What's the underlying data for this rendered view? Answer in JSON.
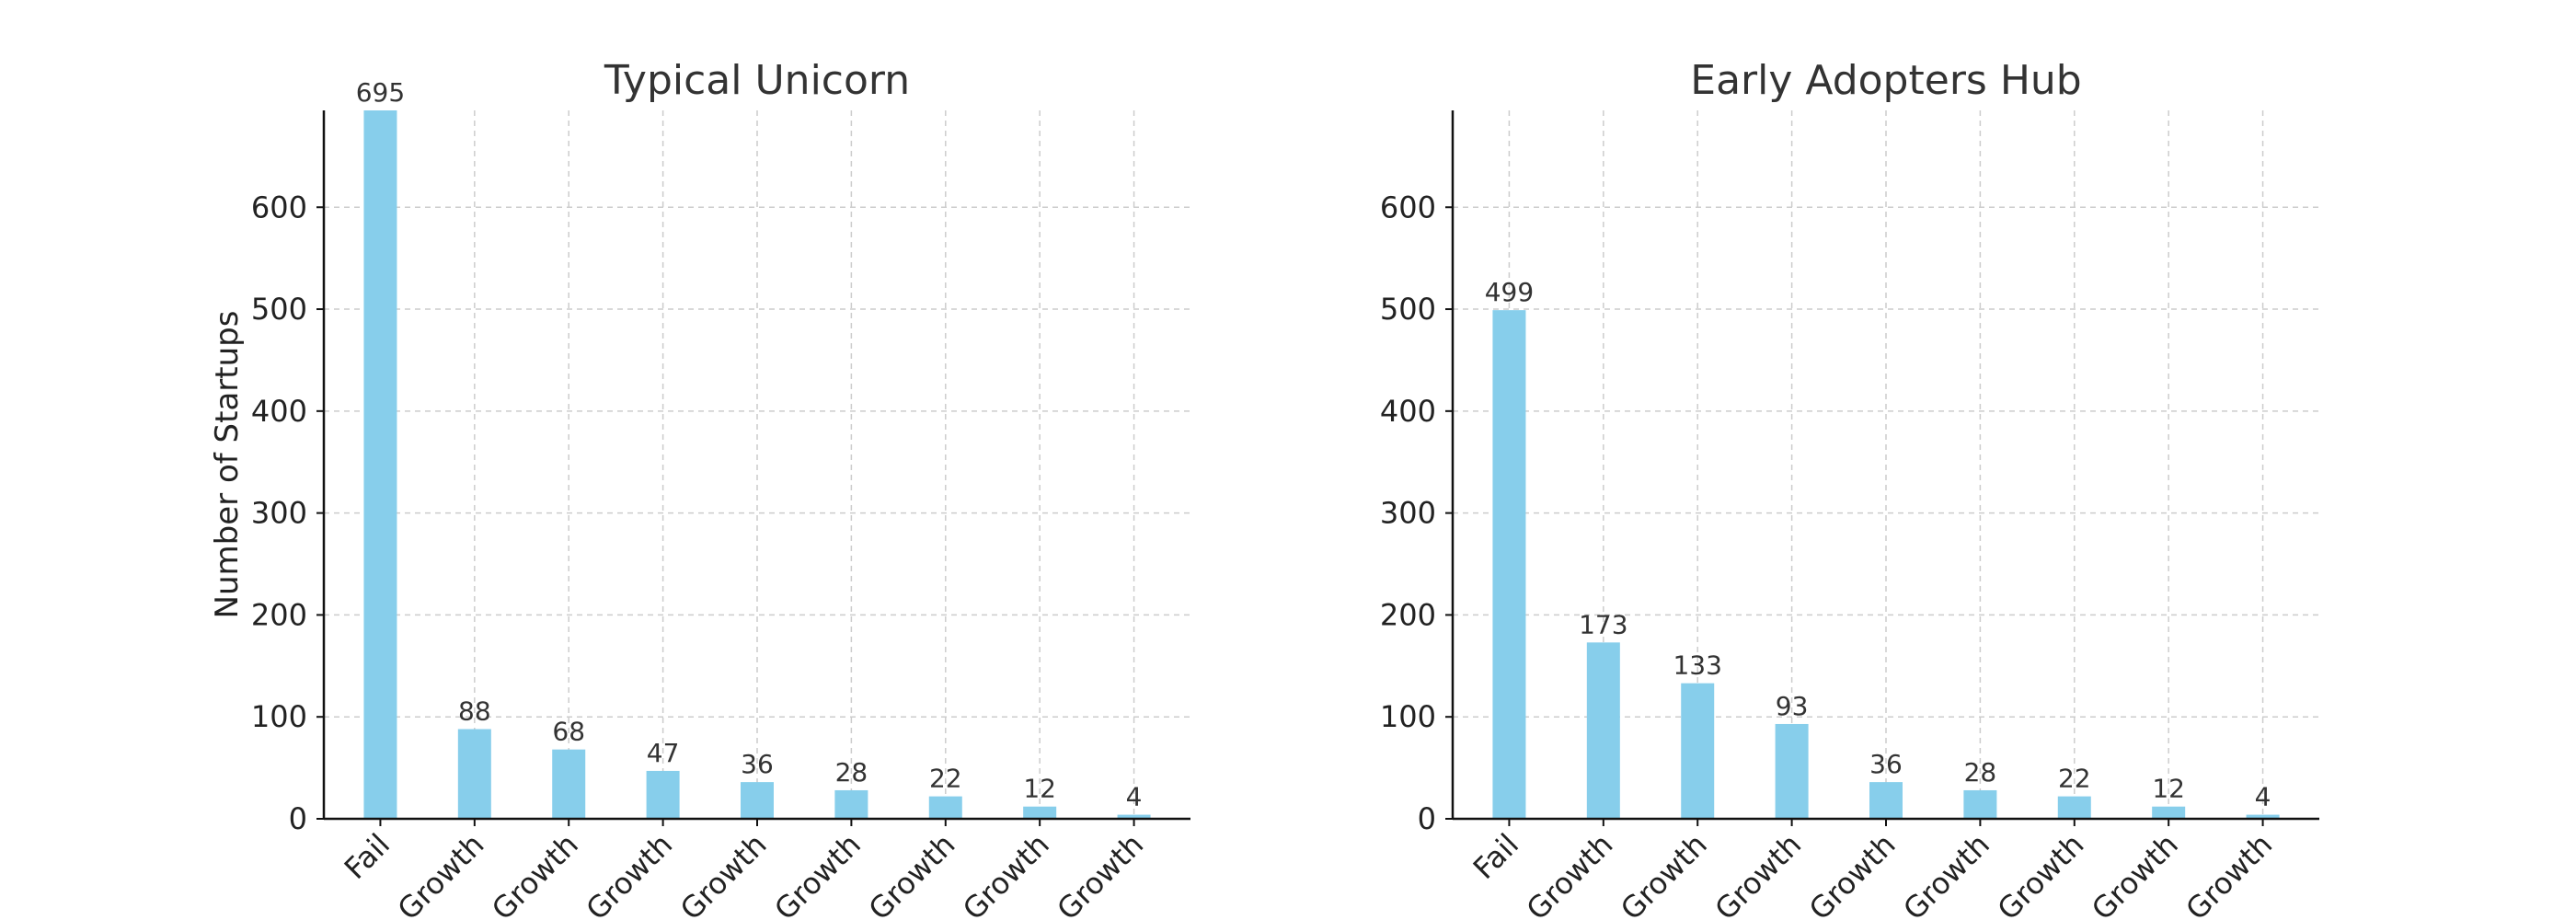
{
  "chart_data": [
    {
      "type": "bar",
      "title": "Typical Unicorn",
      "ylabel": "Number of Startups",
      "xlabel": "",
      "categories": [
        "Fail",
        "Growth",
        "Growth",
        "Growth",
        "Growth",
        "Growth",
        "Growth",
        "Growth",
        "Growth"
      ],
      "values": [
        695,
        88,
        68,
        47,
        36,
        28,
        22,
        12,
        4
      ],
      "ylim": [
        0,
        695
      ],
      "yticks": [
        0,
        100,
        200,
        300,
        400,
        500,
        600
      ],
      "grid": true,
      "bar_color": "#87CEEB"
    },
    {
      "type": "bar",
      "title": "Early Adopters Hub",
      "ylabel": "",
      "xlabel": "",
      "categories": [
        "Fail",
        "Growth",
        "Growth",
        "Growth",
        "Growth",
        "Growth",
        "Growth",
        "Growth",
        "Growth"
      ],
      "values": [
        499,
        173,
        133,
        93,
        36,
        28,
        22,
        12,
        4
      ],
      "ylim": [
        0,
        695
      ],
      "yticks": [
        0,
        100,
        200,
        300,
        400,
        500,
        600
      ],
      "grid": true,
      "bar_color": "#87CEEB"
    }
  ]
}
